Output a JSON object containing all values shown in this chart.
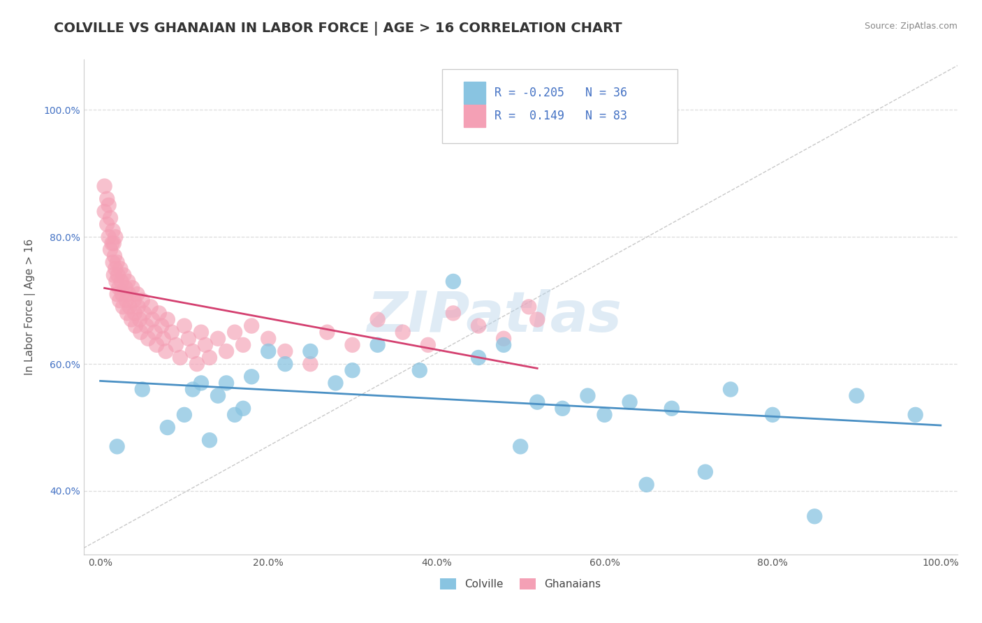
{
  "title": "COLVILLE VS GHANAIAN IN LABOR FORCE | AGE > 16 CORRELATION CHART",
  "source": "Source: ZipAtlas.com",
  "ylabel": "In Labor Force | Age > 16",
  "watermark": "ZIPatlas",
  "xlim": [
    -0.02,
    1.02
  ],
  "ylim": [
    0.3,
    1.08
  ],
  "xticks": [
    0.0,
    0.2,
    0.4,
    0.6,
    0.8,
    1.0
  ],
  "yticks": [
    0.4,
    0.6,
    0.8,
    1.0
  ],
  "xticklabels": [
    "0.0%",
    "20.0%",
    "40.0%",
    "60.0%",
    "80.0%",
    "100.0%"
  ],
  "yticklabels": [
    "40.0%",
    "60.0%",
    "80.0%",
    "100.0%"
  ],
  "colville_color": "#89c4e1",
  "ghanaian_color": "#f4a0b5",
  "colville_line_color": "#4a90c4",
  "ghanaian_line_color": "#d44070",
  "colville_R": -0.205,
  "colville_N": 36,
  "ghanaian_R": 0.149,
  "ghanaian_N": 83,
  "colville_x": [
    0.02,
    0.05,
    0.08,
    0.1,
    0.11,
    0.12,
    0.13,
    0.14,
    0.15,
    0.16,
    0.17,
    0.18,
    0.2,
    0.22,
    0.25,
    0.28,
    0.3,
    0.33,
    0.38,
    0.42,
    0.45,
    0.48,
    0.5,
    0.52,
    0.55,
    0.58,
    0.6,
    0.63,
    0.65,
    0.68,
    0.72,
    0.75,
    0.8,
    0.85,
    0.9,
    0.97
  ],
  "colville_y": [
    0.47,
    0.56,
    0.5,
    0.52,
    0.56,
    0.57,
    0.48,
    0.55,
    0.57,
    0.52,
    0.53,
    0.58,
    0.62,
    0.6,
    0.62,
    0.57,
    0.59,
    0.63,
    0.59,
    0.73,
    0.61,
    0.63,
    0.47,
    0.54,
    0.53,
    0.55,
    0.52,
    0.54,
    0.41,
    0.53,
    0.43,
    0.56,
    0.52,
    0.36,
    0.55,
    0.52
  ],
  "ghanaian_x": [
    0.005,
    0.005,
    0.008,
    0.008,
    0.01,
    0.01,
    0.012,
    0.012,
    0.014,
    0.015,
    0.015,
    0.016,
    0.016,
    0.017,
    0.018,
    0.018,
    0.019,
    0.02,
    0.02,
    0.021,
    0.022,
    0.023,
    0.024,
    0.025,
    0.026,
    0.027,
    0.028,
    0.03,
    0.031,
    0.032,
    0.033,
    0.034,
    0.035,
    0.037,
    0.038,
    0.04,
    0.041,
    0.042,
    0.044,
    0.045,
    0.047,
    0.048,
    0.05,
    0.052,
    0.055,
    0.057,
    0.06,
    0.062,
    0.065,
    0.067,
    0.07,
    0.073,
    0.075,
    0.078,
    0.08,
    0.085,
    0.09,
    0.095,
    0.1,
    0.105,
    0.11,
    0.115,
    0.12,
    0.125,
    0.13,
    0.14,
    0.15,
    0.16,
    0.17,
    0.18,
    0.2,
    0.22,
    0.25,
    0.27,
    0.3,
    0.33,
    0.36,
    0.39,
    0.42,
    0.45,
    0.48,
    0.51,
    0.52
  ],
  "ghanaian_y": [
    0.84,
    0.88,
    0.82,
    0.86,
    0.8,
    0.85,
    0.78,
    0.83,
    0.79,
    0.76,
    0.81,
    0.74,
    0.79,
    0.77,
    0.75,
    0.8,
    0.73,
    0.71,
    0.76,
    0.74,
    0.72,
    0.7,
    0.75,
    0.73,
    0.71,
    0.69,
    0.74,
    0.72,
    0.7,
    0.68,
    0.73,
    0.71,
    0.69,
    0.67,
    0.72,
    0.7,
    0.68,
    0.66,
    0.71,
    0.69,
    0.67,
    0.65,
    0.7,
    0.68,
    0.66,
    0.64,
    0.69,
    0.67,
    0.65,
    0.63,
    0.68,
    0.66,
    0.64,
    0.62,
    0.67,
    0.65,
    0.63,
    0.61,
    0.66,
    0.64,
    0.62,
    0.6,
    0.65,
    0.63,
    0.61,
    0.64,
    0.62,
    0.65,
    0.63,
    0.66,
    0.64,
    0.62,
    0.6,
    0.65,
    0.63,
    0.67,
    0.65,
    0.63,
    0.68,
    0.66,
    0.64,
    0.69,
    0.67
  ],
  "background_color": "#ffffff",
  "grid_color": "#dddddd",
  "title_fontsize": 14,
  "axis_label_fontsize": 11,
  "tick_fontsize": 10,
  "legend_fontsize": 12
}
